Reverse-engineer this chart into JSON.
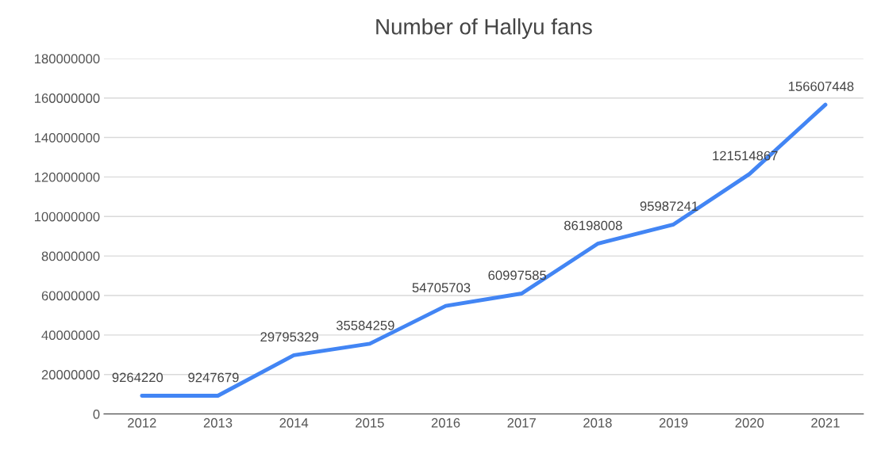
{
  "chart_data": {
    "type": "line",
    "title": "Number of Hallyu fans",
    "categories": [
      "2012",
      "2013",
      "2014",
      "2015",
      "2016",
      "2017",
      "2018",
      "2019",
      "2020",
      "2021"
    ],
    "series": [
      {
        "color": "#4285f4",
        "values": [
          9264220,
          9247679,
          29795329,
          35584259,
          54705703,
          60997585,
          86198008,
          95987241,
          121514867,
          156607448
        ]
      }
    ],
    "ylim": [
      0,
      180000000
    ],
    "yticks": [
      0,
      20000000,
      40000000,
      60000000,
      80000000,
      100000000,
      120000000,
      140000000,
      160000000,
      180000000
    ],
    "grid": "y",
    "data_labels": true,
    "marker": "none",
    "line_style": "solid"
  }
}
